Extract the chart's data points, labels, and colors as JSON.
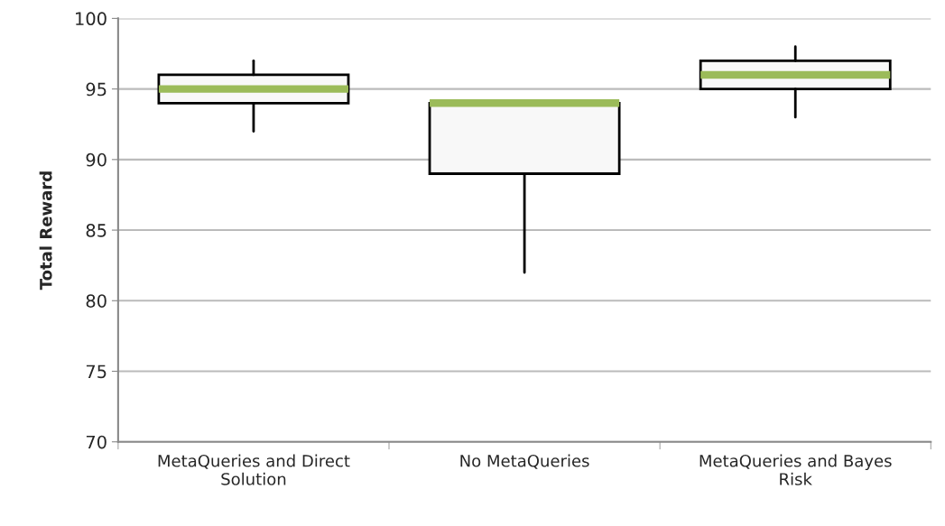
{
  "chart_data": {
    "type": "box",
    "ylabel": "Total Reward",
    "categories": [
      "MetaQueries and Direct\nSolution",
      "No MetaQueries",
      "MetaQueries and Bayes\nRisk"
    ],
    "boxes": [
      {
        "low": 92,
        "q1": 94,
        "median": 95,
        "q3": 96,
        "high": 97
      },
      {
        "low": 82,
        "q1": 89,
        "median": 94,
        "q3": 94,
        "high": 94
      },
      {
        "low": 93,
        "q1": 95,
        "median": 96,
        "q3": 97,
        "high": 98
      }
    ],
    "color": "#f8f8f8",
    "ylim": [
      70,
      100
    ],
    "yticks": [
      70,
      75,
      80,
      85,
      90,
      95,
      100
    ],
    "grid": "y"
  }
}
